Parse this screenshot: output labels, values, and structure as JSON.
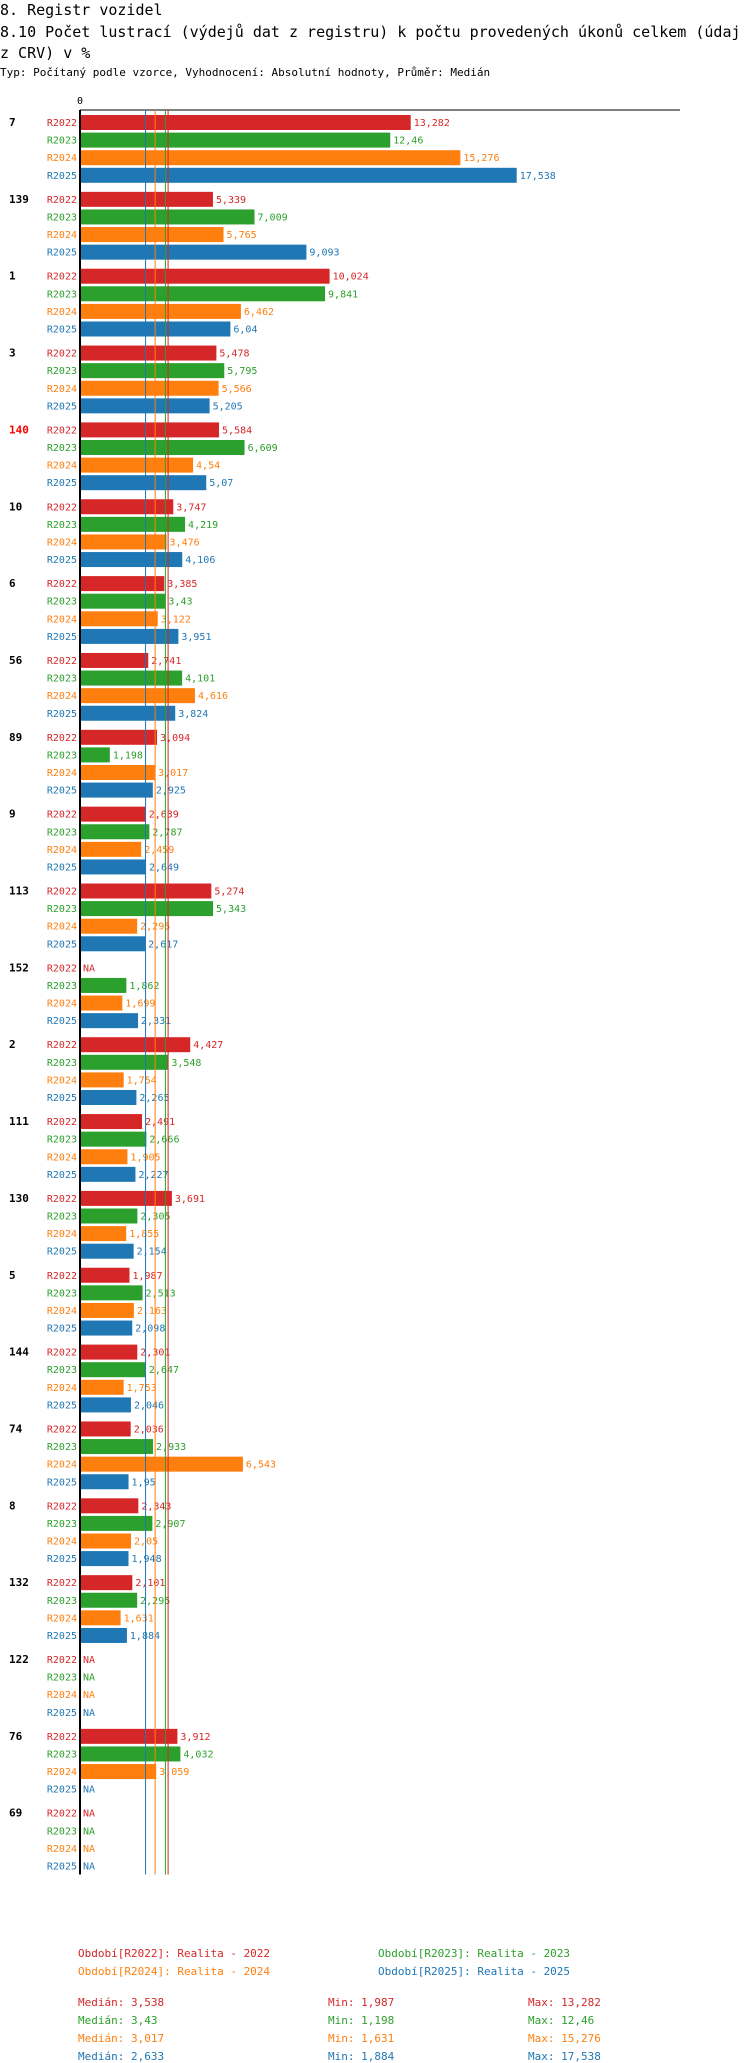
{
  "header": {
    "section": "8. Registr vozidel",
    "title": "8.10 Počet lustrací (výdejů dat z registru) k počtu provedených úkonů celkem (údaj z CRV) v %",
    "subtitle": "Typ: Počítaný podle vzorce, Vyhodnocení: Absolutní hodnoty, Průměr: Medián"
  },
  "chart_data": {
    "type": "bar",
    "orientation": "horizontal",
    "axis_zero_label": "0",
    "xlim": [
      0,
      18
    ],
    "na_label": "NA",
    "series": [
      {
        "key": "R2022",
        "name": "R2022",
        "color": "#d62728"
      },
      {
        "key": "R2023",
        "name": "R2023",
        "color": "#2ca02c"
      },
      {
        "key": "R2024",
        "name": "R2024",
        "color": "#ff7f0e"
      },
      {
        "key": "R2025",
        "name": "R2025",
        "color": "#1f77b4"
      }
    ],
    "groups": [
      {
        "label": "7",
        "highlight": false,
        "values": [
          13.282,
          12.46,
          15.276,
          17.538
        ],
        "labels": [
          "13,282",
          "12,46",
          "15,276",
          "17,538"
        ]
      },
      {
        "label": "139",
        "highlight": false,
        "values": [
          5.339,
          7.009,
          5.765,
          9.093
        ],
        "labels": [
          "5,339",
          "7,009",
          "5,765",
          "9,093"
        ]
      },
      {
        "label": "1",
        "highlight": false,
        "values": [
          10.024,
          9.841,
          6.462,
          6.04
        ],
        "labels": [
          "10,024",
          "9,841",
          "6,462",
          "6,04"
        ]
      },
      {
        "label": "3",
        "highlight": false,
        "values": [
          5.478,
          5.795,
          5.566,
          5.205
        ],
        "labels": [
          "5,478",
          "5,795",
          "5,566",
          "5,205"
        ]
      },
      {
        "label": "140",
        "highlight": true,
        "values": [
          5.584,
          6.609,
          4.54,
          5.07
        ],
        "labels": [
          "5,584",
          "6,609",
          "4,54",
          "5,07"
        ]
      },
      {
        "label": "10",
        "highlight": false,
        "values": [
          3.747,
          4.219,
          3.476,
          4.106
        ],
        "labels": [
          "3,747",
          "4,219",
          "3,476",
          "4,106"
        ]
      },
      {
        "label": "6",
        "highlight": false,
        "values": [
          3.385,
          3.43,
          3.122,
          3.951
        ],
        "labels": [
          "3,385",
          "3,43",
          "3,122",
          "3,951"
        ]
      },
      {
        "label": "56",
        "highlight": false,
        "values": [
          2.741,
          4.101,
          4.616,
          3.824
        ],
        "labels": [
          "2,741",
          "4,101",
          "4,616",
          "3,824"
        ]
      },
      {
        "label": "89",
        "highlight": false,
        "values": [
          3.094,
          1.198,
          3.017,
          2.925
        ],
        "labels": [
          "3,094",
          "1,198",
          "3,017",
          "2,925"
        ]
      },
      {
        "label": "9",
        "highlight": false,
        "values": [
          2.639,
          2.787,
          2.459,
          2.649
        ],
        "labels": [
          "2,639",
          "2,787",
          "2,459",
          "2,649"
        ]
      },
      {
        "label": "113",
        "highlight": false,
        "values": [
          5.274,
          5.343,
          2.295,
          2.617
        ],
        "labels": [
          "5,274",
          "5,343",
          "2,295",
          "2,617"
        ]
      },
      {
        "label": "152",
        "highlight": false,
        "values": [
          null,
          1.862,
          1.699,
          2.331
        ],
        "labels": [
          "NA",
          "1,862",
          "1,699",
          "2,331"
        ]
      },
      {
        "label": "2",
        "highlight": false,
        "values": [
          4.427,
          3.548,
          1.754,
          2.265
        ],
        "labels": [
          "4,427",
          "3,548",
          "1,754",
          "2,265"
        ]
      },
      {
        "label": "111",
        "highlight": false,
        "values": [
          2.491,
          2.666,
          1.905,
          2.227
        ],
        "labels": [
          "2,491",
          "2,666",
          "1,905",
          "2,227"
        ]
      },
      {
        "label": "130",
        "highlight": false,
        "values": [
          3.691,
          2.305,
          1.855,
          2.154
        ],
        "labels": [
          "3,691",
          "2,305",
          "1,855",
          "2,154"
        ]
      },
      {
        "label": "5",
        "highlight": false,
        "values": [
          1.987,
          2.513,
          2.163,
          2.098
        ],
        "labels": [
          "1,987",
          "2,513",
          "2,163",
          "2,098"
        ]
      },
      {
        "label": "144",
        "highlight": false,
        "values": [
          2.301,
          2.647,
          1.753,
          2.046
        ],
        "labels": [
          "2,301",
          "2,647",
          "1,753",
          "2,046"
        ]
      },
      {
        "label": "74",
        "highlight": false,
        "values": [
          2.036,
          2.933,
          6.543,
          1.95
        ],
        "labels": [
          "2,036",
          "2,933",
          "6,543",
          "1,95"
        ]
      },
      {
        "label": "8",
        "highlight": false,
        "values": [
          2.343,
          2.907,
          2.05,
          1.948
        ],
        "labels": [
          "2,343",
          "2,907",
          "2,05",
          "1,948"
        ]
      },
      {
        "label": "132",
        "highlight": false,
        "values": [
          2.101,
          2.295,
          1.631,
          1.884
        ],
        "labels": [
          "2,101",
          "2,295",
          "1,631",
          "1,884"
        ]
      },
      {
        "label": "122",
        "highlight": false,
        "values": [
          null,
          null,
          null,
          null
        ],
        "labels": [
          "NA",
          "NA",
          "NA",
          "NA"
        ]
      },
      {
        "label": "76",
        "highlight": false,
        "values": [
          3.912,
          4.032,
          3.059,
          null
        ],
        "labels": [
          "3,912",
          "4,032",
          "3,059",
          "NA"
        ]
      },
      {
        "label": "69",
        "highlight": false,
        "values": [
          null,
          null,
          null,
          null
        ],
        "labels": [
          "NA",
          "NA",
          "NA",
          "NA"
        ]
      }
    ],
    "median_values": [
      3.538,
      3.43,
      3.017,
      2.633
    ]
  },
  "legend": {
    "items": [
      {
        "text": "Období[R2022]: Realita - 2022",
        "color": "#d62728"
      },
      {
        "text": "Období[R2023]: Realita - 2023",
        "color": "#2ca02c"
      },
      {
        "text": "Období[R2024]: Realita - 2024",
        "color": "#ff7f0e"
      },
      {
        "text": "Období[R2025]: Realita - 2025",
        "color": "#1f77b4"
      }
    ]
  },
  "stats": {
    "rows": [
      {
        "median": "Medián: 3,538",
        "min": "Min: 1,987",
        "max": "Max: 13,282",
        "color": "#d62728"
      },
      {
        "median": "Medián: 3,43",
        "min": "Min: 1,198",
        "max": "Max: 12,46",
        "color": "#2ca02c"
      },
      {
        "median": "Medián: 3,017",
        "min": "Min: 1,631",
        "max": "Max: 15,276",
        "color": "#ff7f0e"
      },
      {
        "median": "Medián: 2,633",
        "min": "Min: 1,884",
        "max": "Max: 17,538",
        "color": "#1f77b4"
      }
    ]
  }
}
